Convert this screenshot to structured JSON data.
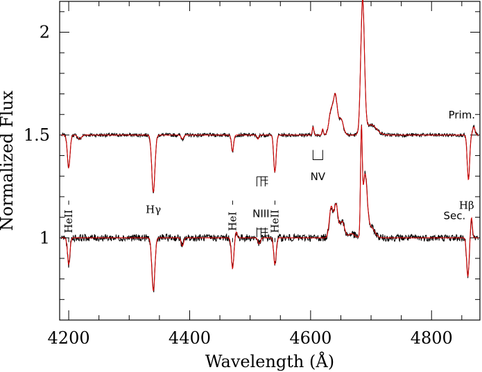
{
  "chart_data": {
    "type": "line",
    "title": "",
    "xlabel": "Wavelength (Å)",
    "ylabel": "Normalized Flux",
    "xlim": [
      4185,
      4880
    ],
    "ylim": [
      0.6,
      2.15
    ],
    "xticks": [
      4200,
      4400,
      4600,
      4800
    ],
    "xtick_labels": [
      "4200",
      "4400",
      "4600",
      "4800"
    ],
    "yticks": [
      1,
      1.5,
      2
    ],
    "ytick_labels": [
      "1",
      "1.5",
      "2"
    ],
    "grid": false,
    "colors": {
      "observed": "#000000",
      "model": "#d40000"
    },
    "components": [
      {
        "label": "Prim.",
        "continuum": 1.5,
        "label_pos": [
          4850,
          1.58
        ],
        "features": [
          {
            "center": 4200,
            "depth": 0.16,
            "width": 2.2
          },
          {
            "center": 4218,
            "depth": 0.02,
            "width": 3
          },
          {
            "center": 4340,
            "depth": 0.28,
            "width": 2.6
          },
          {
            "center": 4388,
            "depth": 0.02,
            "width": 2
          },
          {
            "center": 4471,
            "depth": 0.08,
            "width": 1.8
          },
          {
            "center": 4513,
            "depth": 0.02,
            "width": 1.5
          },
          {
            "center": 4541,
            "depth": 0.18,
            "width": 2.0
          },
          {
            "center": 4604,
            "depth": -0.04,
            "width": 1.2
          },
          {
            "center": 4620,
            "depth": -0.03,
            "width": 1.2
          },
          {
            "center": 4634,
            "depth": -0.12,
            "width": 3.5
          },
          {
            "center": 4641,
            "depth": -0.18,
            "width": 3.0
          },
          {
            "center": 4650,
            "depth": -0.08,
            "width": 4.0
          },
          {
            "center": 4686,
            "depth": -0.65,
            "width": 3.0
          },
          {
            "center": 4700,
            "depth": -0.05,
            "width": 9
          },
          {
            "center": 4861,
            "depth": 0.22,
            "width": 2.0
          },
          {
            "center": 4870,
            "depth": -0.04,
            "width": 2.0
          }
        ]
      },
      {
        "label": "Sec.",
        "continuum": 1.0,
        "label_pos": [
          4838,
          1.09
        ],
        "features": [
          {
            "center": 4200,
            "depth": 0.13,
            "width": 2.0
          },
          {
            "center": 4340,
            "depth": 0.26,
            "width": 2.5
          },
          {
            "center": 4388,
            "depth": 0.04,
            "width": 2.0
          },
          {
            "center": 4471,
            "depth": 0.15,
            "width": 2.0
          },
          {
            "center": 4477,
            "depth": -0.03,
            "width": 1.5
          },
          {
            "center": 4515,
            "depth": 0.03,
            "width": 2.0
          },
          {
            "center": 4541,
            "depth": 0.13,
            "width": 2.0
          },
          {
            "center": 4634,
            "depth": -0.15,
            "width": 3.0
          },
          {
            "center": 4642,
            "depth": -0.16,
            "width": 3.0
          },
          {
            "center": 4652,
            "depth": -0.08,
            "width": 4.0
          },
          {
            "center": 4668,
            "depth": -0.02,
            "width": 5.0
          },
          {
            "center": 4684,
            "depth": -0.48,
            "width": 1.4
          },
          {
            "center": 4690,
            "depth": -0.3,
            "width": 3.5
          },
          {
            "center": 4700,
            "depth": -0.05,
            "width": 6.0
          },
          {
            "center": 4860,
            "depth": 0.19,
            "width": 2.0
          },
          {
            "center": 4866,
            "depth": -0.1,
            "width": 1.5
          }
        ]
      }
    ],
    "line_labels": [
      {
        "text": "HeII",
        "x": 4200,
        "y": 1.08,
        "rotate": true
      },
      {
        "text": "Hγ",
        "x": 4340,
        "y": 1.12,
        "rotate": false
      },
      {
        "text": "HeI",
        "x": 4471,
        "y": 1.08,
        "rotate": true
      },
      {
        "text": "NIII",
        "x": 4518,
        "y": 1.1,
        "rotate": false
      },
      {
        "text": "HeII",
        "x": 4541,
        "y": 1.08,
        "rotate": true
      },
      {
        "text": "NV",
        "x": 4612,
        "y": 1.28,
        "rotate": false
      },
      {
        "text": "Hβ",
        "x": 4858,
        "y": 1.14,
        "rotate": false
      }
    ]
  }
}
